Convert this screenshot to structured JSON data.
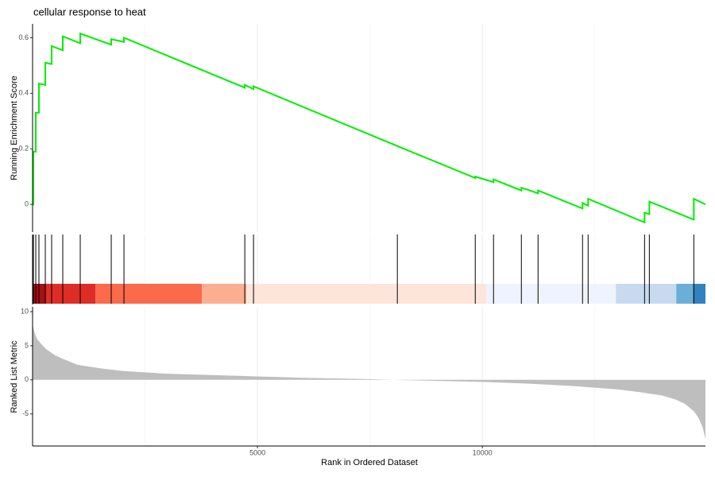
{
  "chart_data": [
    {
      "type": "line",
      "title": "cellular response to heat",
      "y_label": "Running Enrichment Score",
      "x": [
        1,
        18,
        18,
        71,
        71,
        141,
        141,
        283,
        283,
        424,
        424,
        671,
        671,
        1060,
        1060,
        1749,
        1749,
        2032,
        2032,
        4718,
        4718,
        4912,
        4912,
        8110,
        9842,
        9842,
        10248,
        10248,
        10867,
        10867,
        11238,
        11238,
        12227,
        12227,
        12351,
        12351,
        13606,
        13606,
        13712,
        13712,
        14701,
        14701,
        14960
      ],
      "series": [
        {
          "color": "#00ee00",
          "values": [
            0,
            0,
            0.19,
            0.19,
            0.33,
            0.33,
            0.435,
            0.43,
            0.51,
            0.505,
            0.57,
            0.555,
            0.605,
            0.58,
            0.615,
            0.575,
            0.595,
            0.585,
            0.6,
            0.42,
            0.43,
            0.415,
            0.425,
            0.21,
            0.095,
            0.1,
            0.08,
            0.09,
            0.05,
            0.06,
            0.04,
            0.05,
            -0.015,
            0.005,
            -0.005,
            0.02,
            -0.065,
            -0.03,
            -0.035,
            0.01,
            -0.055,
            0.02,
            0.0
          ]
        }
      ],
      "xlim": [
        0,
        14960
      ],
      "ylim": [
        -0.1,
        0.65
      ],
      "yticks": [
        0.0,
        0.2,
        0.4,
        0.6
      ],
      "xticks": [
        5000,
        10000
      ],
      "minor_xticks": [
        2500,
        7500,
        12500
      ],
      "grid": true
    },
    {
      "type": "rug",
      "hits": [
        18,
        71,
        141,
        283,
        424,
        671,
        1060,
        1749,
        2032,
        4718,
        4912,
        8110,
        9842,
        10248,
        10867,
        11238,
        12227,
        12351,
        13606,
        13712,
        14701
      ],
      "hit_color": "#000000",
      "band_edges": [
        0,
        300,
        1396,
        3763,
        4753,
        10088,
        12968,
        14311,
        14682,
        14960
      ],
      "band_colors": [
        "#a50f15",
        "#de2d26",
        "#fb6a4a",
        "#fcae91",
        "#fee5d9",
        "#eff3ff",
        "#c6dbef",
        "#6baed6",
        "#3182bd"
      ],
      "xlim": [
        0,
        14960
      ],
      "xticks": [
        5000,
        10000
      ],
      "minor_xticks": [
        2500,
        7500,
        12500
      ],
      "grid": true
    },
    {
      "type": "area",
      "x_label": "Rank in Ordered Dataset",
      "y_label": "Ranked List Metric",
      "x": [
        1,
        50,
        100,
        200,
        300,
        500,
        700,
        1000,
        1500,
        2000,
        3000,
        4000,
        5000,
        6000,
        7500,
        8000,
        9000,
        10000,
        11000,
        12000,
        13000,
        13500,
        14000,
        14300,
        14500,
        14700,
        14800,
        14900,
        14960
      ],
      "values": [
        8,
        6.8,
        6,
        5.2,
        4.5,
        3.6,
        3,
        2.2,
        1.7,
        1.3,
        0.9,
        0.7,
        0.5,
        0.3,
        0.1,
        0,
        -0.15,
        -0.3,
        -0.55,
        -0.9,
        -1.4,
        -1.8,
        -2.3,
        -2.9,
        -3.5,
        -4.6,
        -5.5,
        -7,
        -8.7
      ],
      "color": "#bebebe",
      "xlim": [
        0,
        14960
      ],
      "ylim": [
        -9.7,
        10.7
      ],
      "yticks": [
        -5,
        0,
        5,
        10
      ],
      "xticks": [
        5000,
        10000
      ],
      "minor_xticks": [
        2500,
        7500,
        12500
      ],
      "grid": true
    }
  ]
}
